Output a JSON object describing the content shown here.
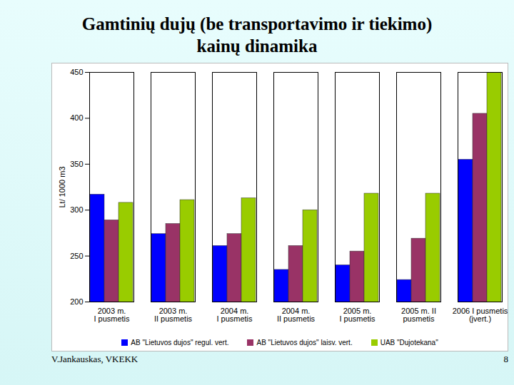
{
  "chart_data": {
    "type": "bar",
    "title": "Gamtinių dujų (be transportavimo ir tiekimo)\nkainų dinamika",
    "y_label": "Lt/ 1000 m3",
    "categories": [
      "2003 m.\nI pusmetis",
      "2003 m.\nII pusmetis",
      "2004 m.\nI pusmetis",
      "2004 m.\nII pusmetis",
      "2005 m.\nI pusmetis",
      "2005 m. II\npusmetis",
      "2006 I pusmetis\n(įvert.)"
    ],
    "series": [
      {
        "name": "AB \"Lietuvos dujos\" regul. vert.",
        "color": "#0000ff",
        "values": [
          317,
          274,
          261,
          235,
          240,
          224,
          355
        ]
      },
      {
        "name": "AB \"Lietuvos dujos\" laisv. vert.",
        "color": "#993366",
        "values": [
          289,
          285,
          274,
          261,
          255,
          269,
          405
        ]
      },
      {
        "name": "UAB \"Dujotekana\"",
        "color": "#99cc00",
        "values": [
          308,
          311,
          313,
          300,
          318,
          318,
          450
        ]
      }
    ],
    "ylim": [
      200,
      450
    ],
    "yticks": [
      200,
      250,
      300,
      350,
      400,
      450
    ],
    "grid": false,
    "legend": "bottom",
    "footer": "V.Jankauskas, VKEKK",
    "page_number": 8
  }
}
